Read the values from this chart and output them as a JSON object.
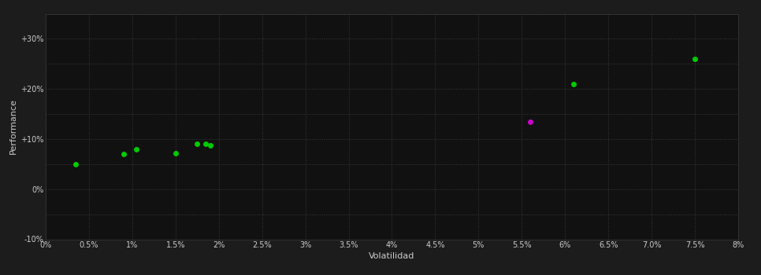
{
  "xlabel": "Volatilidad",
  "ylabel": "Performance",
  "background_color": "#1c1c1c",
  "plot_background_color": "#111111",
  "grid_color": "#3a3a3a",
  "text_color": "#cccccc",
  "xlim": [
    0,
    0.08
  ],
  "ylim": [
    -0.1,
    0.35
  ],
  "xticks": [
    0,
    0.005,
    0.01,
    0.015,
    0.02,
    0.025,
    0.03,
    0.035,
    0.04,
    0.045,
    0.05,
    0.055,
    0.06,
    0.065,
    0.07,
    0.075,
    0.08
  ],
  "yticks": [
    -0.1,
    -0.05,
    0.0,
    0.05,
    0.1,
    0.15,
    0.2,
    0.25,
    0.3,
    0.35
  ],
  "ytick_labels": [
    "-10%",
    "",
    "0%",
    "",
    "+10%",
    "",
    "+20%",
    "",
    "+30%",
    ""
  ],
  "green_points": [
    [
      0.0035,
      0.05
    ],
    [
      0.009,
      0.07
    ],
    [
      0.0105,
      0.08
    ],
    [
      0.015,
      0.072
    ],
    [
      0.0175,
      0.09
    ],
    [
      0.0185,
      0.091
    ],
    [
      0.019,
      0.088
    ],
    [
      0.061,
      0.21
    ],
    [
      0.075,
      0.26
    ]
  ],
  "magenta_points": [
    [
      0.056,
      0.135
    ]
  ],
  "green_color": "#00cc00",
  "magenta_color": "#cc00cc",
  "marker_size": 5
}
